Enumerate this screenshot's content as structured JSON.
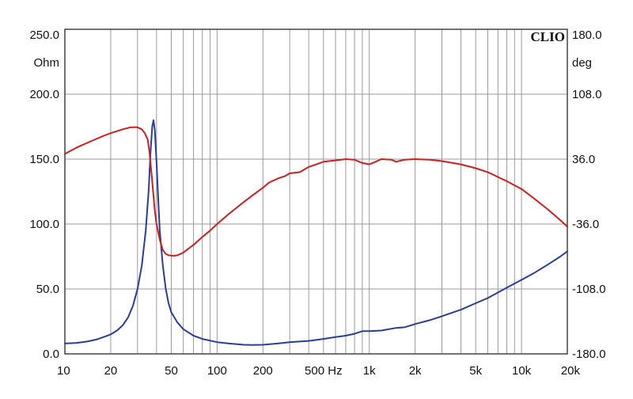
{
  "chart_data": {
    "type": "line",
    "brand": "CLIO",
    "x_scale": "log",
    "xlim": [
      10,
      20000
    ],
    "x_tick_labels": [
      {
        "value": 10,
        "label": "10"
      },
      {
        "value": 20,
        "label": "20"
      },
      {
        "value": 50,
        "label": "50"
      },
      {
        "value": 100,
        "label": "100"
      },
      {
        "value": 200,
        "label": "200"
      },
      {
        "value": 500,
        "label": "500 Hz"
      },
      {
        "value": 1000,
        "label": "1k"
      },
      {
        "value": 2000,
        "label": "2k"
      },
      {
        "value": 5000,
        "label": "5k"
      },
      {
        "value": 10000,
        "label": "10k"
      },
      {
        "value": 20000,
        "label": "20k"
      }
    ],
    "y_left": {
      "unit": "Ohm",
      "ylim": [
        0,
        250
      ],
      "ticks": [
        {
          "value": 250,
          "label": "250.0"
        },
        {
          "value": 200,
          "label": "200.0"
        },
        {
          "value": 150,
          "label": "150.0"
        },
        {
          "value": 100,
          "label": "100.0"
        },
        {
          "value": 50,
          "label": "50.0"
        },
        {
          "value": 0,
          "label": "0.0"
        }
      ]
    },
    "y_right": {
      "unit": "deg",
      "ylim": [
        -180,
        180
      ],
      "ticks": [
        {
          "value": 180,
          "label": "180.0"
        },
        {
          "value": 108,
          "label": "108.0"
        },
        {
          "value": 36,
          "label": "36.0"
        },
        {
          "value": -36,
          "label": "-36.0"
        },
        {
          "value": -108,
          "label": "-108.0"
        },
        {
          "value": -180,
          "label": "-180.0"
        }
      ]
    },
    "grid": true,
    "series": [
      {
        "color": "#2b3d9a",
        "axis": "left",
        "points": [
          [
            10,
            8
          ],
          [
            12,
            8.5
          ],
          [
            14,
            9.5
          ],
          [
            16,
            11
          ],
          [
            18,
            13
          ],
          [
            20,
            15
          ],
          [
            22,
            18
          ],
          [
            24,
            22
          ],
          [
            26,
            28
          ],
          [
            28,
            37
          ],
          [
            30,
            50
          ],
          [
            32,
            68
          ],
          [
            34,
            95
          ],
          [
            35.5,
            125
          ],
          [
            36.5,
            155
          ],
          [
            37.5,
            175
          ],
          [
            38.2,
            180
          ],
          [
            39,
            172
          ],
          [
            40,
            148
          ],
          [
            41,
            120
          ],
          [
            42,
            95
          ],
          [
            44,
            68
          ],
          [
            46,
            50
          ],
          [
            48,
            39
          ],
          [
            50,
            32
          ],
          [
            55,
            24
          ],
          [
            60,
            19
          ],
          [
            70,
            14
          ],
          [
            80,
            11.5
          ],
          [
            100,
            9
          ],
          [
            120,
            8
          ],
          [
            150,
            7
          ],
          [
            170,
            6.8
          ],
          [
            200,
            7
          ],
          [
            250,
            8
          ],
          [
            300,
            9
          ],
          [
            400,
            10
          ],
          [
            500,
            11.5
          ],
          [
            600,
            13
          ],
          [
            700,
            14
          ],
          [
            800,
            15.5
          ],
          [
            900,
            17.5
          ],
          [
            1000,
            17.5
          ],
          [
            1200,
            18
          ],
          [
            1500,
            20
          ],
          [
            1700,
            20.5
          ],
          [
            2000,
            23
          ],
          [
            2500,
            26
          ],
          [
            3000,
            29
          ],
          [
            4000,
            34
          ],
          [
            5000,
            39
          ],
          [
            6000,
            43
          ],
          [
            8000,
            51
          ],
          [
            10000,
            57
          ],
          [
            12000,
            62
          ],
          [
            15000,
            69
          ],
          [
            18000,
            75
          ],
          [
            20000,
            79
          ]
        ]
      },
      {
        "color": "#cc2020",
        "axis": "left",
        "points": [
          [
            10,
            154
          ],
          [
            12,
            159
          ],
          [
            15,
            164
          ],
          [
            18,
            168
          ],
          [
            20,
            170
          ],
          [
            24,
            173
          ],
          [
            27,
            174.5
          ],
          [
            30,
            174.5
          ],
          [
            32,
            173
          ],
          [
            33.5,
            170
          ],
          [
            35,
            165
          ],
          [
            36,
            155
          ],
          [
            37,
            140
          ],
          [
            38,
            125
          ],
          [
            39,
            110
          ],
          [
            40,
            100
          ],
          [
            42,
            88
          ],
          [
            44,
            80
          ],
          [
            46,
            77
          ],
          [
            48,
            76
          ],
          [
            52,
            75.5
          ],
          [
            55,
            76
          ],
          [
            60,
            78
          ],
          [
            70,
            84
          ],
          [
            80,
            90
          ],
          [
            90,
            95
          ],
          [
            100,
            100
          ],
          [
            120,
            108
          ],
          [
            150,
            117
          ],
          [
            180,
            124
          ],
          [
            200,
            128
          ],
          [
            220,
            132
          ],
          [
            250,
            135
          ],
          [
            280,
            137
          ],
          [
            300,
            139
          ],
          [
            350,
            140
          ],
          [
            400,
            144
          ],
          [
            450,
            146
          ],
          [
            500,
            148
          ],
          [
            600,
            149
          ],
          [
            700,
            150
          ],
          [
            800,
            149.5
          ],
          [
            900,
            147
          ],
          [
            1000,
            146
          ],
          [
            1100,
            148
          ],
          [
            1200,
            150
          ],
          [
            1400,
            149.5
          ],
          [
            1500,
            148
          ],
          [
            1700,
            149.5
          ],
          [
            2000,
            150
          ],
          [
            2500,
            149.5
          ],
          [
            3000,
            148.5
          ],
          [
            4000,
            146
          ],
          [
            5000,
            143
          ],
          [
            6000,
            140
          ],
          [
            8000,
            133
          ],
          [
            10000,
            127
          ],
          [
            12000,
            120
          ],
          [
            15000,
            111
          ],
          [
            18000,
            103
          ],
          [
            20000,
            98
          ]
        ]
      }
    ]
  }
}
